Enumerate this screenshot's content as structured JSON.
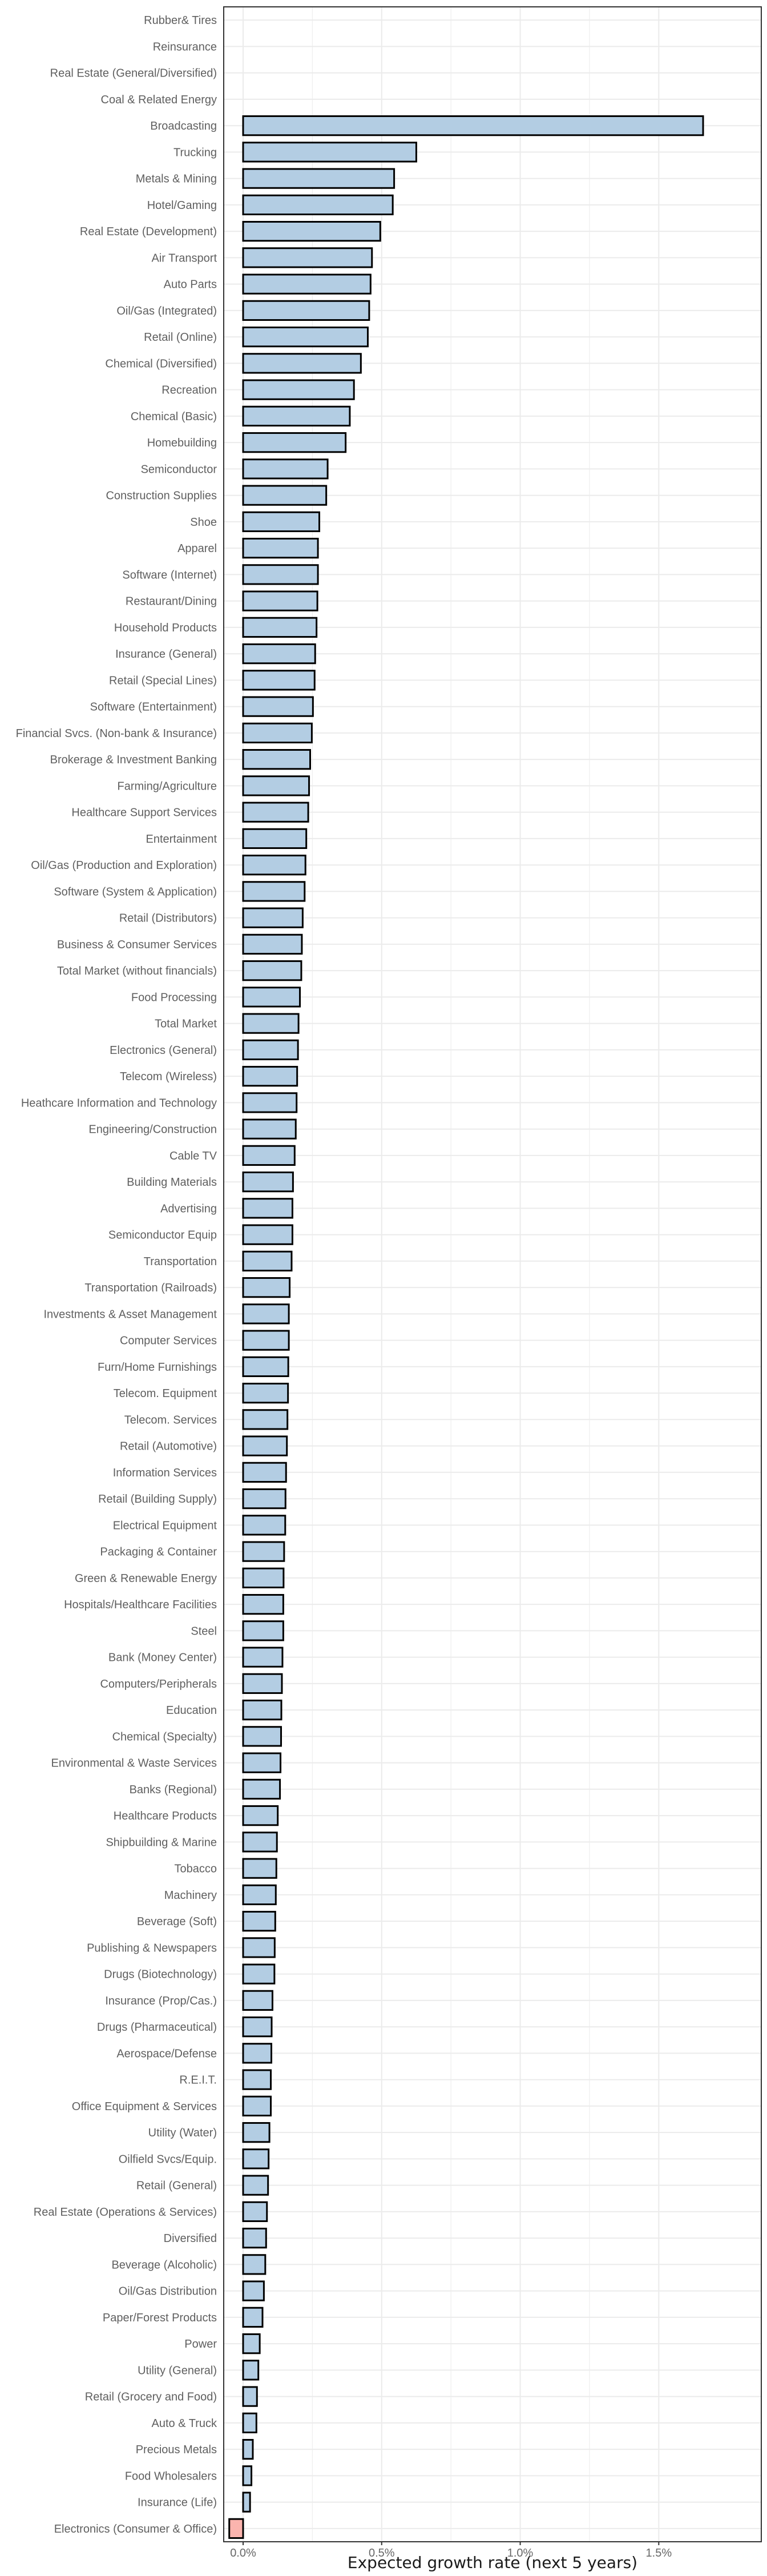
{
  "chart_data": {
    "type": "bar",
    "orientation": "horizontal",
    "xlabel": "Expected growth rate (next 5 years)",
    "ylabel": "",
    "xlim": [
      -0.07,
      1.87
    ],
    "x_ticks": [
      0,
      0.5,
      1.0,
      1.5
    ],
    "x_tick_labels": [
      "0.0%",
      "0.5%",
      "1.0%",
      "1.5%"
    ],
    "grid": true,
    "colors": {
      "positive": "#b3cde3",
      "negative": "#fbb4ae",
      "outline": "#000000",
      "panel_border": "#333333",
      "grid": "#ebebeb"
    },
    "categories": [
      "Rubber& Tires",
      "Reinsurance",
      "Real Estate (General/Diversified)",
      "Coal & Related Energy",
      "Broadcasting",
      "Trucking",
      "Metals & Mining",
      "Hotel/Gaming",
      "Real Estate (Development)",
      "Air Transport",
      "Auto Parts",
      "Oil/Gas (Integrated)",
      "Retail (Online)",
      "Chemical (Diversified)",
      "Recreation",
      "Chemical (Basic)",
      "Homebuilding",
      "Semiconductor",
      "Construction Supplies",
      "Shoe",
      "Apparel",
      "Software (Internet)",
      "Restaurant/Dining",
      "Household Products",
      "Insurance (General)",
      "Retail (Special Lines)",
      "Software (Entertainment)",
      "Financial Svcs. (Non-bank & Insurance)",
      "Brokerage & Investment Banking",
      "Farming/Agriculture",
      "Healthcare Support Services",
      "Entertainment",
      "Oil/Gas (Production and Exploration)",
      "Software (System & Application)",
      "Retail (Distributors)",
      "Business & Consumer Services",
      "Total Market (without financials)",
      "Food Processing",
      "Total Market",
      "Electronics (General)",
      "Telecom (Wireless)",
      "Heathcare Information and Technology",
      "Engineering/Construction",
      "Cable TV",
      "Building Materials",
      "Advertising",
      "Semiconductor Equip",
      "Transportation",
      "Transportation (Railroads)",
      "Investments & Asset Management",
      "Computer Services",
      "Furn/Home Furnishings",
      "Telecom. Equipment",
      "Telecom. Services",
      "Retail (Automotive)",
      "Information Services",
      "Retail (Building Supply)",
      "Electrical Equipment",
      "Packaging & Container",
      "Green & Renewable Energy",
      "Hospitals/Healthcare Facilities",
      "Steel",
      "Bank (Money Center)",
      "Computers/Peripherals",
      "Education",
      "Chemical (Specialty)",
      "Environmental & Waste Services",
      "Banks (Regional)",
      "Healthcare Products",
      "Shipbuilding & Marine",
      "Tobacco",
      "Machinery",
      "Beverage (Soft)",
      "Publishing & Newspapers",
      "Drugs (Biotechnology)",
      "Insurance (Prop/Cas.)",
      "Drugs (Pharmaceutical)",
      "Aerospace/Defense",
      "R.E.I.T.",
      "Office Equipment & Services",
      "Utility (Water)",
      "Oilfield Svcs/Equip.",
      "Retail (General)",
      "Real Estate (Operations & Services)",
      "Diversified",
      "Beverage (Alcoholic)",
      "Oil/Gas Distribution",
      "Paper/Forest Products",
      "Power",
      "Utility (General)",
      "Retail (Grocery and Food)",
      "Auto & Truck",
      "Precious Metals",
      "Food Wholesalers",
      "Insurance (Life)",
      "Electronics (Consumer & Office)"
    ],
    "values": [
      0,
      0,
      0,
      0,
      1.66,
      0.625,
      0.545,
      0.54,
      0.495,
      0.465,
      0.46,
      0.455,
      0.45,
      0.425,
      0.4,
      0.385,
      0.37,
      0.305,
      0.3,
      0.275,
      0.27,
      0.27,
      0.268,
      0.265,
      0.26,
      0.258,
      0.252,
      0.248,
      0.242,
      0.238,
      0.235,
      0.228,
      0.225,
      0.222,
      0.215,
      0.212,
      0.21,
      0.205,
      0.2,
      0.198,
      0.195,
      0.193,
      0.19,
      0.186,
      0.18,
      0.178,
      0.178,
      0.175,
      0.168,
      0.165,
      0.165,
      0.163,
      0.162,
      0.16,
      0.158,
      0.155,
      0.153,
      0.152,
      0.148,
      0.146,
      0.145,
      0.145,
      0.142,
      0.14,
      0.138,
      0.137,
      0.135,
      0.133,
      0.125,
      0.122,
      0.12,
      0.118,
      0.116,
      0.114,
      0.113,
      0.106,
      0.103,
      0.102,
      0.1,
      0.1,
      0.095,
      0.092,
      0.09,
      0.086,
      0.083,
      0.08,
      0.075,
      0.07,
      0.06,
      0.055,
      0.05,
      0.048,
      0.035,
      0.03,
      0.025,
      -0.05
    ]
  }
}
